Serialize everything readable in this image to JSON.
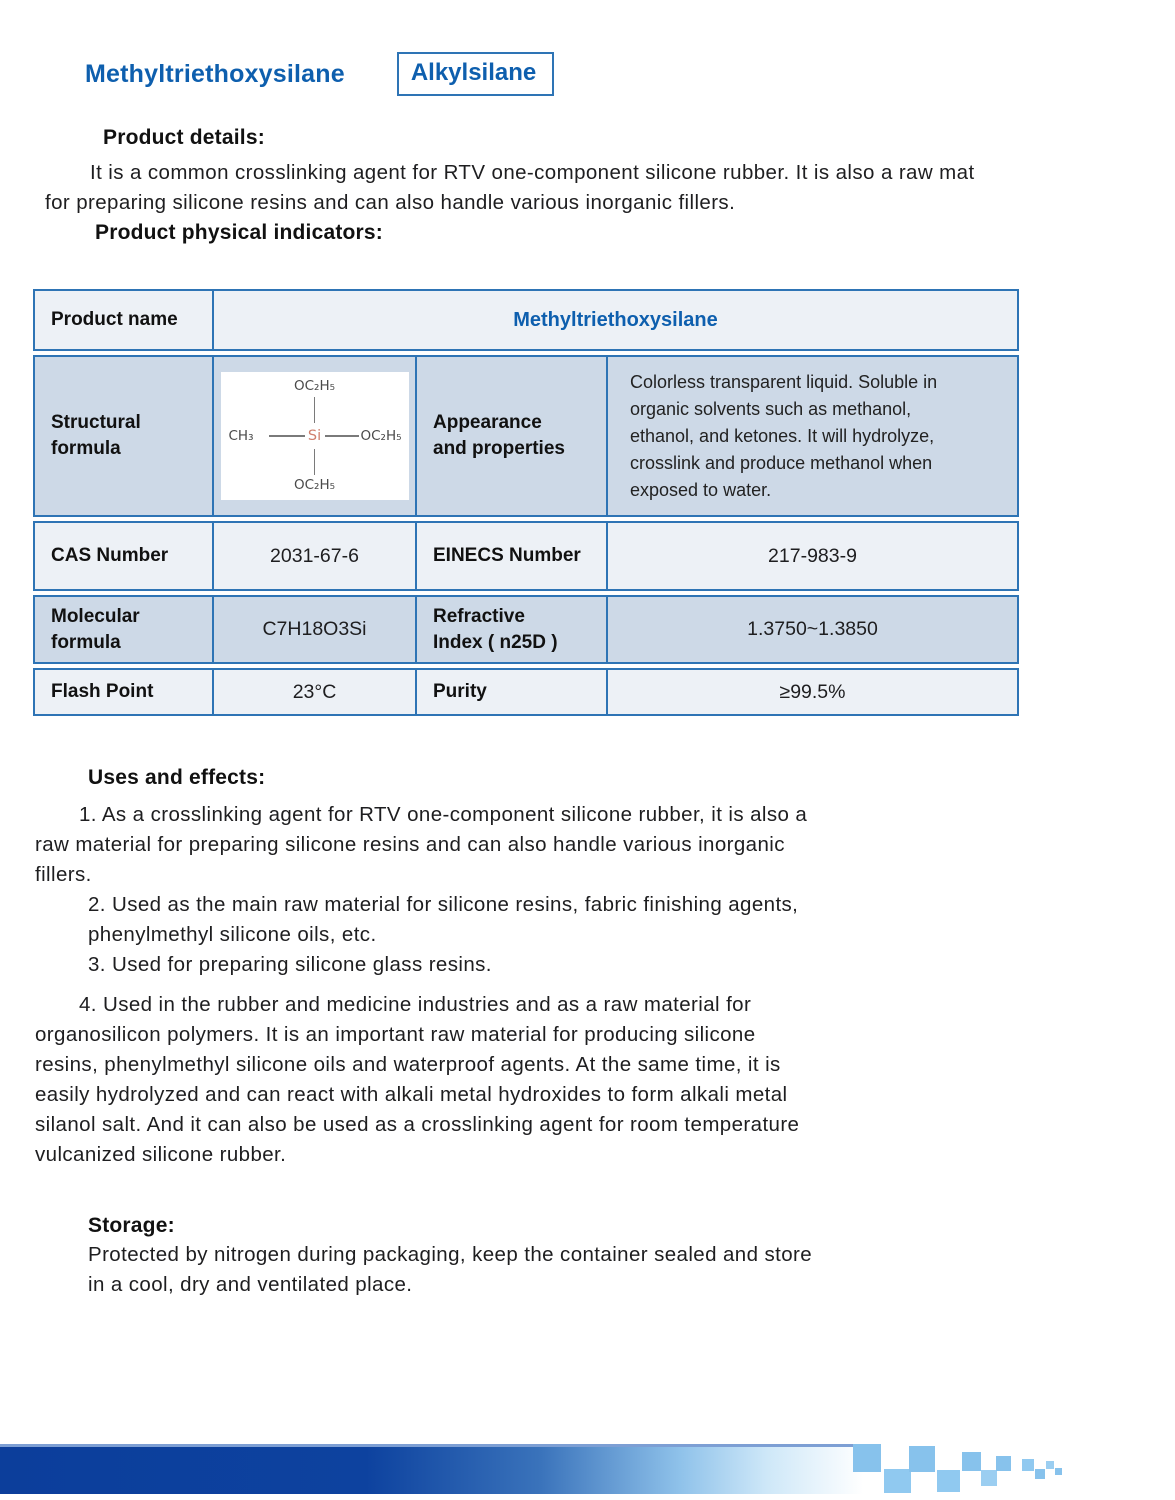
{
  "header": {
    "title": "Methyltriethoxysilane",
    "category": "Alkylsilane"
  },
  "sections": {
    "details": {
      "heading": "Product details:",
      "lines": [
        "It is a common crosslinking agent for RTV one-component silicone rubber. It is also a raw mat",
        "for preparing silicone resins and can also handle various inorganic fillers."
      ]
    },
    "indicators": {
      "heading": "Product physical indicators:"
    },
    "uses": {
      "heading": "Uses and effects:",
      "items": [
        {
          "lines": [
            "1. As a crosslinking agent for RTV one-component silicone rubber, it is also a",
            "raw material for preparing silicone resins and can also handle various inorganic",
            "fillers."
          ]
        },
        {
          "lines": [
            "2. Used as the main raw material for silicone resins, fabric finishing agents,",
            "phenylmethyl silicone oils, etc."
          ]
        },
        {
          "lines": [
            "3. Used for preparing silicone glass resins."
          ]
        },
        {
          "lines": [
            "4. Used in the rubber and medicine industries and as a raw material for",
            "organosilicon polymers. It is an important raw material for producing silicone",
            "resins, phenylmethyl silicone oils and waterproof agents. At the same time, it is",
            "easily hydrolyzed and can react with alkali metal hydroxides to form alkali metal",
            "silanol salt. And it can also be used as a crosslinking agent for room temperature",
            "vulcanized silicone rubber."
          ]
        }
      ]
    },
    "storage": {
      "heading": "Storage:",
      "lines": [
        "Protected by nitrogen during packaging, keep the container sealed and store",
        "in a cool, dry and ventilated place."
      ]
    }
  },
  "table": {
    "product_name_label": "Product name",
    "product_name_value": "Methyltriethoxysilane",
    "structural_label_lines": [
      "Structural",
      "formula"
    ],
    "formula": {
      "methyl": "CH₃",
      "silicon": "Si",
      "ethoxy": "OC₂H₅"
    },
    "appearance_label_lines": [
      "Appearance",
      "and properties"
    ],
    "appearance_value_lines": [
      "Colorless transparent liquid. Soluble in",
      "organic solvents such as methanol,",
      "ethanol, and ketones. It will hydrolyze,",
      "crosslink and produce methanol when",
      "exposed to water."
    ],
    "cas_label": "CAS Number",
    "cas_value": "2031-67-6",
    "einecs_label": "EINECS  Number",
    "einecs_value": "217-983-9",
    "molecular_label_lines": [
      "Molecular",
      "formula"
    ],
    "molecular_value": "C7H18O3Si",
    "refractive_label_lines": [
      "Refractive",
      "Index ( n25D )"
    ],
    "refractive_value": "1.3750~1.3850",
    "flash_label": "Flash Point",
    "flash_value": "23°C",
    "purity_label": "Purity",
    "purity_value": "≥99.5%"
  },
  "colors": {
    "accent_blue": "#0e5fae",
    "table_border_blue": "#2e74b5",
    "row_light": "#edf1f6",
    "row_dark": "#cdd9e7",
    "silicon_atom": "#cf7f6d",
    "bar_dark_blue": "#0c3e9b",
    "pixel_square_blue": "#87c2ec"
  }
}
